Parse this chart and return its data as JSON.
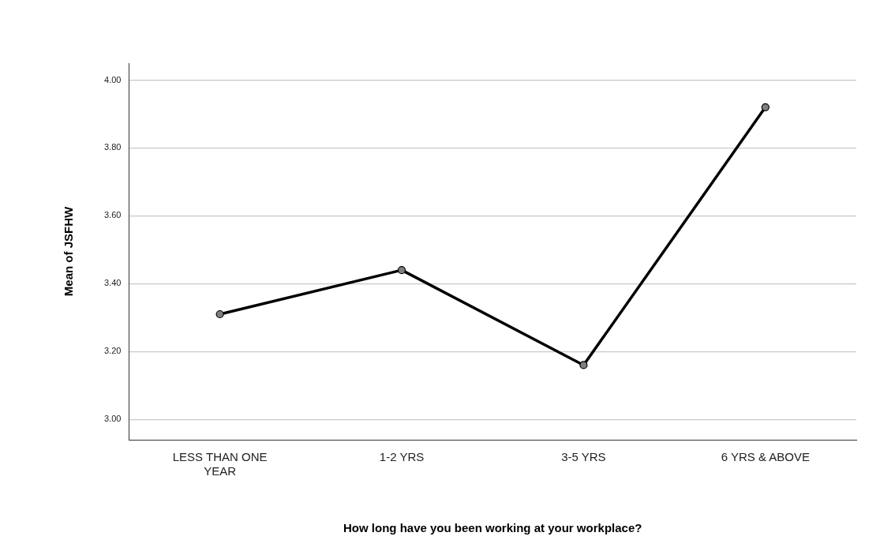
{
  "chart_data": {
    "type": "line",
    "xlabel": "How long have you been working at your workplace?",
    "ylabel": "Mean of JSFHW",
    "categories": [
      "LESS THAN ONE YEAR",
      "1-2 YRS",
      "3-5 YRS",
      "6 YRS & ABOVE"
    ],
    "series": [
      {
        "color": "#000000",
        "values": [
          3.31,
          3.44,
          3.16,
          3.92
        ]
      }
    ],
    "ylim": [
      2.94,
      4.05
    ],
    "yticks": [
      {
        "value": 3,
        "label": "3.00"
      },
      {
        "value": 3.2,
        "label": "3.20"
      },
      {
        "value": 3.4,
        "label": "3.40"
      },
      {
        "value": 3.6,
        "label": "3.60"
      },
      {
        "value": 3.8,
        "label": "3.80"
      },
      {
        "value": 4,
        "label": "4.00"
      }
    ],
    "grid": "y",
    "marker": "circle",
    "legend": false
  }
}
